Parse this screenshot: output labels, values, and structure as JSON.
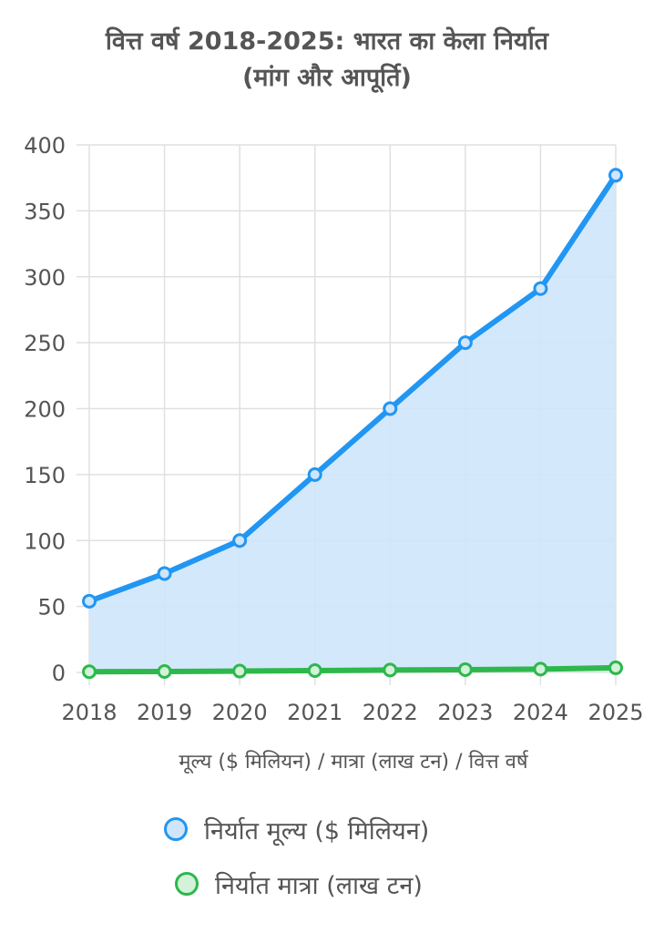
{
  "title_lines": [
    "वित्त वर्ष 2018-2025: भारत का केला निर्यात",
    "(मांग और आपूर्ति)"
  ],
  "colors": {
    "value_line": "#2196f3",
    "value_fill": "#cfe5fb",
    "volume_line": "#2db84c",
    "volume_fill": "#d4f2d9",
    "grid": "#e0e0e0",
    "text": "#555555"
  },
  "chart_data": {
    "type": "line",
    "categories": [
      "2018",
      "2019",
      "2020",
      "2021",
      "2022",
      "2023",
      "2024",
      "2025"
    ],
    "xlabel": "मूल्य ($ मिलियन) / मात्रा (लाख टन) / वित्त वर्ष",
    "ylabel": "",
    "ylim": [
      0,
      400
    ],
    "yticks": [
      0,
      50,
      100,
      150,
      200,
      250,
      300,
      350,
      400
    ],
    "grid": true,
    "legend_position": "bottom",
    "series": [
      {
        "name": "निर्यात मूल्य ($ मिलियन)",
        "values": [
          54,
          75,
          100,
          150,
          200,
          250,
          291,
          377
        ],
        "fill": true
      },
      {
        "name": "निर्यात मात्रा (लाख टन)",
        "values": [
          0.5,
          0.7,
          1.0,
          1.4,
          1.8,
          2.1,
          2.5,
          3.5
        ],
        "fill": true
      }
    ]
  }
}
